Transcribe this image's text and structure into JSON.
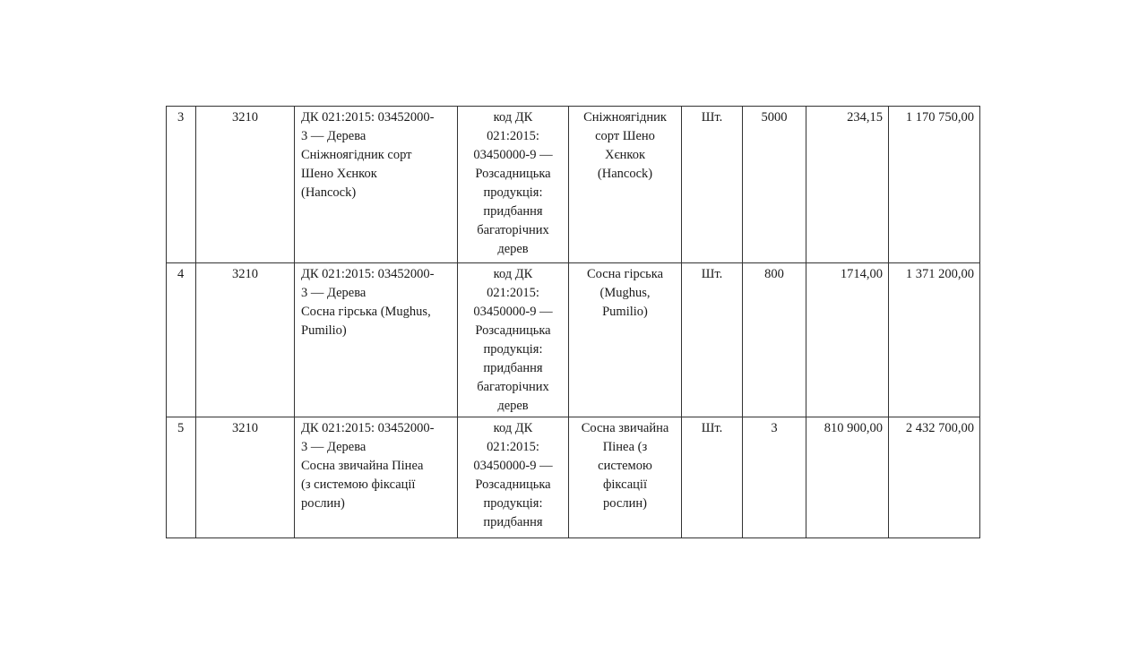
{
  "rows": [
    {
      "num": "3",
      "code": "3210",
      "dk_item": "ДК 021:2015: 03452000-\n3 — Дерева\nСніжноягідник сорт\nШено Хєнкок\n(Hancock)",
      "dk_class": "код ДК\n021:2015:\n03450000-9 —\nРозсадницька\nпродукція:\nпридбання\nбагаторічних\nдерев",
      "name": "Сніжноягідник\nсорт Шено\nХєнкок\n(Hancock)",
      "unit": "Шт.",
      "qty": "5000",
      "price": "234,15",
      "total": "1 170 750,00"
    },
    {
      "num": "4",
      "code": "3210",
      "dk_item": "ДК 021:2015: 03452000-\n3 — Дерева\nСосна гірська (Mughus,\nPumilio)",
      "dk_class": "код ДК\n021:2015:\n03450000-9 —\nРозсадницька\nпродукція:\nпридбання\nбагаторічних\nдерев",
      "name": "Сосна гірська\n(Mughus,\nPumilio)",
      "unit": "Шт.",
      "qty": "800",
      "price": "1714,00",
      "total": "1 371 200,00"
    },
    {
      "num": "5",
      "code": "3210",
      "dk_item": "ДК 021:2015: 03452000-\n3 — Дерева\nСосна звичайна Пінеа\n(з системою фіксації\nрослин)",
      "dk_class": "код ДК\n021:2015:\n03450000-9 —\nРозсадницька\nпродукція:\nпридбання",
      "name": "Сосна звичайна\nПінеа (з\nсистемою\nфіксації\nрослин)",
      "unit": "Шт.",
      "qty": "3",
      "price": "810 900,00",
      "total": "2 432 700,00"
    }
  ]
}
